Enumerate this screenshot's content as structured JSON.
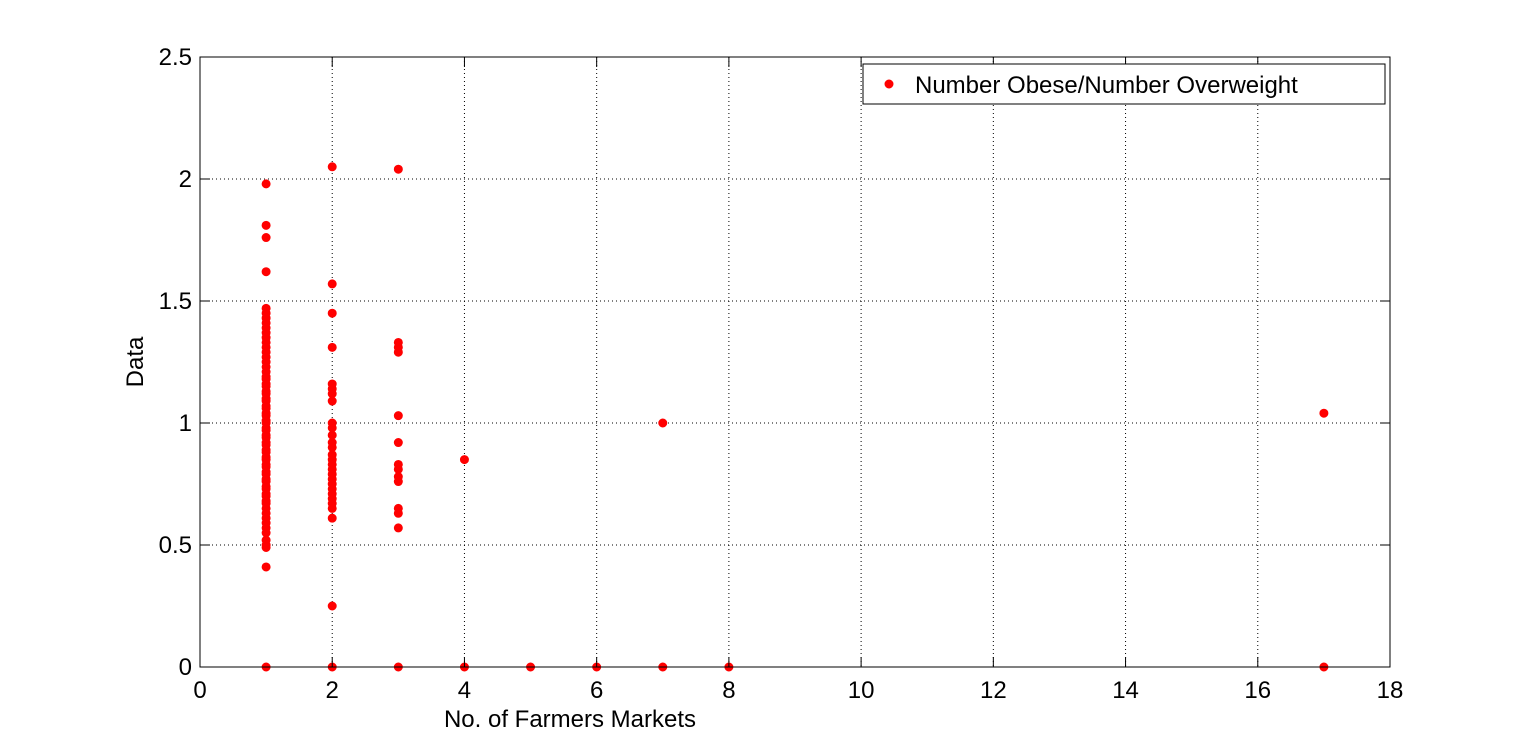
{
  "chart_data": {
    "type": "scatter",
    "title": "",
    "xlabel": "No. of Farmers Markets",
    "ylabel": "Data",
    "xlim": [
      0,
      18
    ],
    "ylim": [
      0,
      2.5
    ],
    "xticks": [
      0,
      2,
      4,
      6,
      8,
      10,
      12,
      14,
      16,
      18
    ],
    "yticks": [
      0,
      0.5,
      1,
      1.5,
      2,
      2.5
    ],
    "xtick_labels": [
      "0",
      "2",
      "4",
      "6",
      "8",
      "10",
      "12",
      "14",
      "16",
      "18"
    ],
    "ytick_labels": [
      "0",
      "0.5",
      "1",
      "1.5",
      "2",
      "2.5"
    ],
    "grid": true,
    "legend_position": "top-right",
    "series": [
      {
        "name": "Number Obese/Number Overweight",
        "color": "#ff0000",
        "marker": "dot",
        "points": [
          [
            1,
            1.98
          ],
          [
            1,
            1.81
          ],
          [
            1,
            1.76
          ],
          [
            1,
            1.62
          ],
          [
            1,
            1.47
          ],
          [
            1,
            1.45
          ],
          [
            1,
            1.43
          ],
          [
            1,
            1.41
          ],
          [
            1,
            1.39
          ],
          [
            1,
            1.37
          ],
          [
            1,
            1.35
          ],
          [
            1,
            1.33
          ],
          [
            1,
            1.31
          ],
          [
            1,
            1.29
          ],
          [
            1,
            1.27
          ],
          [
            1,
            1.25
          ],
          [
            1,
            1.23
          ],
          [
            1,
            1.21
          ],
          [
            1,
            1.19
          ],
          [
            1,
            1.18
          ],
          [
            1,
            1.16
          ],
          [
            1,
            1.15
          ],
          [
            1,
            1.13
          ],
          [
            1,
            1.12
          ],
          [
            1,
            1.1
          ],
          [
            1,
            1.09
          ],
          [
            1,
            1.07
          ],
          [
            1,
            1.06
          ],
          [
            1,
            1.04
          ],
          [
            1,
            1.03
          ],
          [
            1,
            1.01
          ],
          [
            1,
            1.0
          ],
          [
            1,
            0.98
          ],
          [
            1,
            0.97
          ],
          [
            1,
            0.95
          ],
          [
            1,
            0.94
          ],
          [
            1,
            0.92
          ],
          [
            1,
            0.91
          ],
          [
            1,
            0.89
          ],
          [
            1,
            0.88
          ],
          [
            1,
            0.86
          ],
          [
            1,
            0.85
          ],
          [
            1,
            0.83
          ],
          [
            1,
            0.82
          ],
          [
            1,
            0.8
          ],
          [
            1,
            0.79
          ],
          [
            1,
            0.77
          ],
          [
            1,
            0.76
          ],
          [
            1,
            0.74
          ],
          [
            1,
            0.73
          ],
          [
            1,
            0.71
          ],
          [
            1,
            0.7
          ],
          [
            1,
            0.68
          ],
          [
            1,
            0.67
          ],
          [
            1,
            0.65
          ],
          [
            1,
            0.63
          ],
          [
            1,
            0.61
          ],
          [
            1,
            0.59
          ],
          [
            1,
            0.57
          ],
          [
            1,
            0.55
          ],
          [
            1,
            0.52
          ],
          [
            1,
            0.5
          ],
          [
            1,
            0.49
          ],
          [
            1,
            0.41
          ],
          [
            1,
            0.0
          ],
          [
            2,
            2.05
          ],
          [
            2,
            1.57
          ],
          [
            2,
            1.45
          ],
          [
            2,
            1.31
          ],
          [
            2,
            1.16
          ],
          [
            2,
            1.14
          ],
          [
            2,
            1.12
          ],
          [
            2,
            1.09
          ],
          [
            2,
            1.0
          ],
          [
            2,
            0.98
          ],
          [
            2,
            0.95
          ],
          [
            2,
            0.92
          ],
          [
            2,
            0.9
          ],
          [
            2,
            0.87
          ],
          [
            2,
            0.85
          ],
          [
            2,
            0.83
          ],
          [
            2,
            0.81
          ],
          [
            2,
            0.79
          ],
          [
            2,
            0.77
          ],
          [
            2,
            0.75
          ],
          [
            2,
            0.73
          ],
          [
            2,
            0.71
          ],
          [
            2,
            0.69
          ],
          [
            2,
            0.67
          ],
          [
            2,
            0.65
          ],
          [
            2,
            0.61
          ],
          [
            2,
            0.25
          ],
          [
            2,
            0.0
          ],
          [
            3,
            2.04
          ],
          [
            3,
            1.33
          ],
          [
            3,
            1.31
          ],
          [
            3,
            1.29
          ],
          [
            3,
            1.03
          ],
          [
            3,
            0.92
          ],
          [
            3,
            0.83
          ],
          [
            3,
            0.81
          ],
          [
            3,
            0.78
          ],
          [
            3,
            0.76
          ],
          [
            3,
            0.65
          ],
          [
            3,
            0.63
          ],
          [
            3,
            0.57
          ],
          [
            3,
            0.0
          ],
          [
            4,
            0.85
          ],
          [
            4,
            0.0
          ],
          [
            5,
            0.0
          ],
          [
            6,
            0.0
          ],
          [
            7,
            1.0
          ],
          [
            7,
            0.0
          ],
          [
            8,
            0.0
          ],
          [
            17,
            1.04
          ],
          [
            17,
            0.0
          ]
        ]
      }
    ]
  }
}
